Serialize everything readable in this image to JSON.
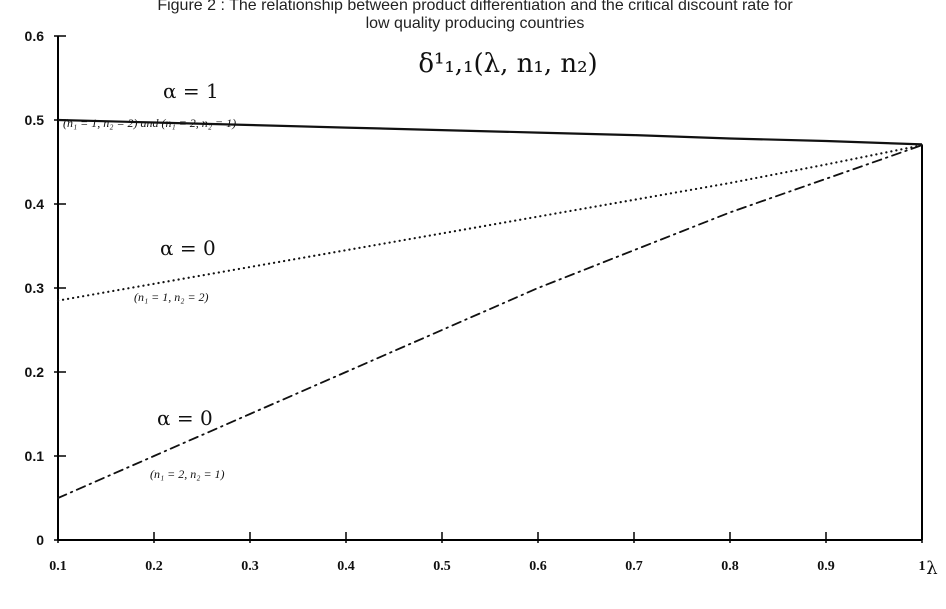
{
  "chart_data": {
    "type": "line",
    "title_line1": "Figure 2 : The relationship between product differentiation and the critical discount rate for",
    "title_line2": "low quality producing countries",
    "formula_label": "δ¹₁,₁(λ, n₁, n₂)",
    "xlabel": "λ",
    "ylabel": "",
    "xlim": [
      0.1,
      1
    ],
    "ylim": [
      0,
      0.6
    ],
    "x_ticks": [
      "0.1",
      "0.2",
      "0.3",
      "0.4",
      "0.5",
      "0.6",
      "0.7",
      "0.8",
      "0.9",
      "1"
    ],
    "y_ticks": [
      "0",
      "0.1",
      "0.2",
      "0.3",
      "0.4",
      "0.5",
      "0.6"
    ],
    "grid": false,
    "series": [
      {
        "label": "α = 1",
        "sublabel": "(n₁ = 1, n₂ = 2) and (n₁ = 2, n₂ = 1)",
        "style": "solid",
        "x": [
          0.1,
          0.2,
          0.3,
          0.4,
          0.5,
          0.6,
          0.7,
          0.8,
          0.9,
          1.0
        ],
        "y": [
          0.5,
          0.497,
          0.494,
          0.491,
          0.488,
          0.485,
          0.482,
          0.478,
          0.475,
          0.471
        ]
      },
      {
        "label": "α = 0",
        "sublabel": "(n₁ = 1, n₂ = 2)",
        "style": "dotted",
        "x": [
          0.1,
          0.2,
          0.3,
          0.4,
          0.5,
          0.6,
          0.7,
          0.8,
          0.9,
          1.0
        ],
        "y": [
          0.285,
          0.305,
          0.325,
          0.345,
          0.365,
          0.385,
          0.405,
          0.425,
          0.447,
          0.47
        ]
      },
      {
        "label": "α = 0",
        "sublabel": "(n₁ = 2, n₂ = 1)",
        "style": "dashdot",
        "x": [
          0.1,
          0.2,
          0.3,
          0.4,
          0.5,
          0.6,
          0.7,
          0.8,
          0.9,
          1.0
        ],
        "y": [
          0.05,
          0.1,
          0.15,
          0.2,
          0.25,
          0.3,
          0.345,
          0.39,
          0.43,
          0.47
        ]
      }
    ]
  }
}
